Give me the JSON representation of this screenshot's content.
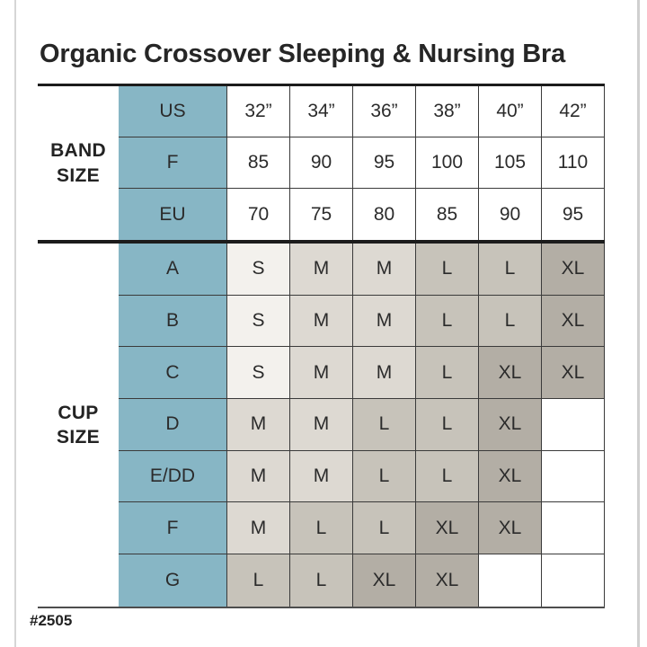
{
  "title": "Organic Crossover Sleeping & Nursing Bra",
  "footnote": "#2505",
  "colors": {
    "teal": "#87b6c5",
    "thin_border": "#3a3a3a",
    "thick_line": "#1c1c1c",
    "bottom_line": "#4d4d4d",
    "text": "#2b2b2b",
    "size_fills": {
      "S": "#f3f1ed",
      "M": "#ddd9d2",
      "L": "#c7c3ba",
      "XL": "#b3aea5",
      "": "#ffffff"
    }
  },
  "chart_data": {
    "type": "table",
    "title": "Organic Crossover Sleeping & Nursing Bra",
    "footnote": "#2505",
    "sections": [
      {
        "label": "BAND SIZE",
        "rows": [
          {
            "label": "US",
            "cells": [
              "32”",
              "34”",
              "36”",
              "38”",
              "40”",
              "42”"
            ]
          },
          {
            "label": "F",
            "cells": [
              "85",
              "90",
              "95",
              "100",
              "105",
              "110"
            ]
          },
          {
            "label": "EU",
            "cells": [
              "70",
              "75",
              "80",
              "85",
              "90",
              "95"
            ]
          }
        ]
      },
      {
        "label": "CUP SIZE",
        "rows": [
          {
            "label": "A",
            "cells": [
              "S",
              "M",
              "M",
              "L",
              "L",
              "XL"
            ]
          },
          {
            "label": "B",
            "cells": [
              "S",
              "M",
              "M",
              "L",
              "L",
              "XL"
            ]
          },
          {
            "label": "C",
            "cells": [
              "S",
              "M",
              "M",
              "L",
              "XL",
              "XL"
            ]
          },
          {
            "label": "D",
            "cells": [
              "M",
              "M",
              "L",
              "L",
              "XL",
              ""
            ]
          },
          {
            "label": "E/DD",
            "cells": [
              "M",
              "M",
              "L",
              "L",
              "XL",
              ""
            ]
          },
          {
            "label": "F",
            "cells": [
              "M",
              "L",
              "L",
              "XL",
              "XL",
              ""
            ]
          },
          {
            "label": "G",
            "cells": [
              "L",
              "L",
              "XL",
              "XL",
              "",
              ""
            ]
          }
        ]
      }
    ]
  }
}
